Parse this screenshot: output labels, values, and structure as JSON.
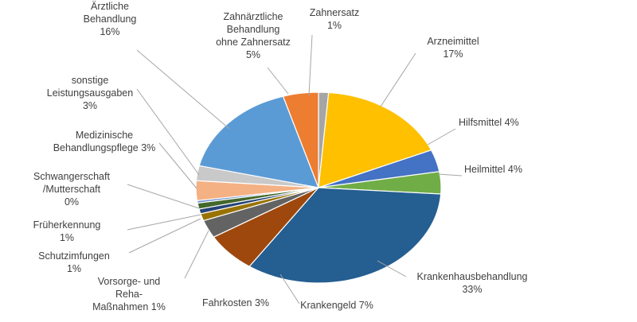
{
  "chart_data": {
    "type": "pie",
    "title": "",
    "unit": "%",
    "slices": [
      {
        "label": "Zahnersatz",
        "value_label": "1%",
        "value": 1.3,
        "color": "#a5a5a5"
      },
      {
        "label": "Arzneimittel",
        "value_label": "17%",
        "value": 17.0,
        "color": "#ffc000"
      },
      {
        "label": "Hilfsmittel",
        "value_label": "4%",
        "value": 3.7,
        "color": "#4472c4"
      },
      {
        "label": "Heilmittel",
        "value_label": "4%",
        "value": 3.7,
        "color": "#70ad47"
      },
      {
        "label": "Krankenhausbehandlung",
        "value_label": "33%",
        "value": 33.0,
        "color": "#255e91"
      },
      {
        "label": "Krankengeld",
        "value_label": "7%",
        "value": 6.7,
        "color": "#9e480e"
      },
      {
        "label": "Fahrkosten",
        "value_label": "3%",
        "value": 3.0,
        "color": "#636363"
      },
      {
        "label": "Vorsorge- und Reha-Maßnahmen",
        "value_label": "1%",
        "value": 1.2,
        "color": "#997300"
      },
      {
        "label": "Schutzimfungen",
        "value_label": "1%",
        "value": 0.8,
        "color": "#264478"
      },
      {
        "label": "Früherkennung",
        "value_label": "1%",
        "value": 1.0,
        "color": "#43682b"
      },
      {
        "label": "Schwangerschaft/Mutterschaft",
        "value_label": "0%",
        "value": 0.4,
        "color": "#698ed0"
      },
      {
        "label": "Medizinische Behandlungspflege",
        "value_label": "3%",
        "value": 3.3,
        "color": "#f4b183"
      },
      {
        "label": "sonstige Leistungsausgaben",
        "value_label": "3%",
        "value": 2.5,
        "color": "#c9c9c9"
      },
      {
        "label": "Ärztliche Behandlung",
        "value_label": "16%",
        "value": 16.4,
        "color": "#5b9bd5"
      },
      {
        "label": "Zahnärztliche Behandlung ohne Zahnersatz",
        "value_label": "5%",
        "value": 4.6,
        "color": "#ed7d31"
      }
    ],
    "label_lines": [
      [
        "Zahnersatz",
        "1%"
      ],
      [
        "Arzneimittel",
        "17%"
      ],
      [
        "Hilfsmittel 4%"
      ],
      [
        "Heilmittel 4%"
      ],
      [
        "Krankenhausbehandlung",
        "33%"
      ],
      [
        "Krankengeld 7%"
      ],
      [
        "Fahrkosten 3%"
      ],
      [
        "Vorsorge- und",
        "Reha-",
        "Maßnahmen 1%"
      ],
      [
        "Schutzimfungen",
        "1%"
      ],
      [
        "Früherkennung",
        "1%"
      ],
      [
        "Schwangerschaft",
        "/Mutterschaft",
        "0%"
      ],
      [
        "Medizinische",
        "Behandlungspflege 3%"
      ],
      [
        "sonstige",
        "Leistungsausgaben",
        "3%"
      ],
      [
        "Ärztliche",
        "Behandlung",
        "16%"
      ],
      [
        "Zahnärztliche",
        "Behandlung",
        "ohne Zahnersatz",
        "5%"
      ]
    ],
    "legend": "none",
    "grid": false
  }
}
